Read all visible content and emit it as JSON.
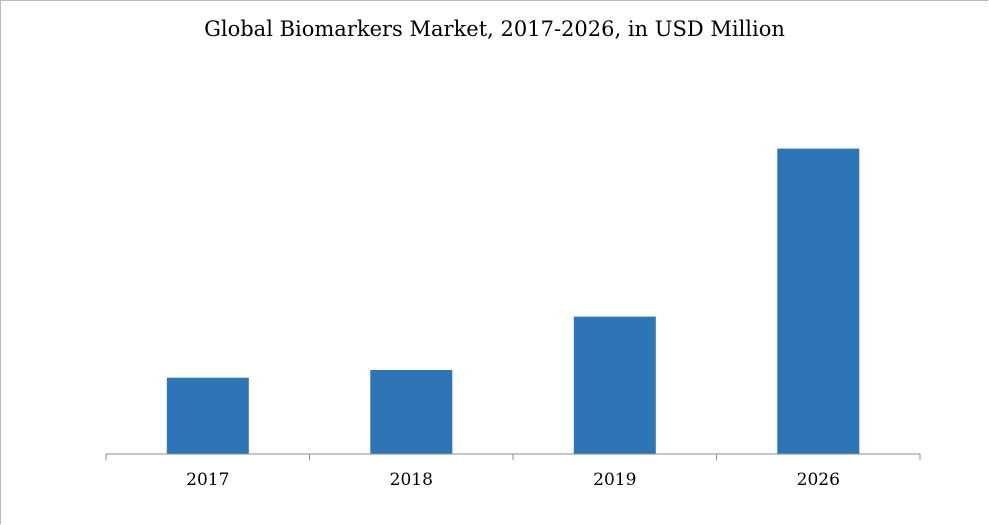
{
  "chart_data": {
    "type": "bar",
    "title": "Global Biomarkers Market, 2017-2026, in USD Million",
    "categories": [
      "2017",
      "2018",
      "2019",
      "2026"
    ],
    "values": [
      1.0,
      1.1,
      1.8,
      4.0
    ],
    "ylim": [
      0,
      5.2
    ],
    "grid": false,
    "legend": "none",
    "bar_color": "#2e75b6",
    "axis_color": "#8c8c8c"
  }
}
